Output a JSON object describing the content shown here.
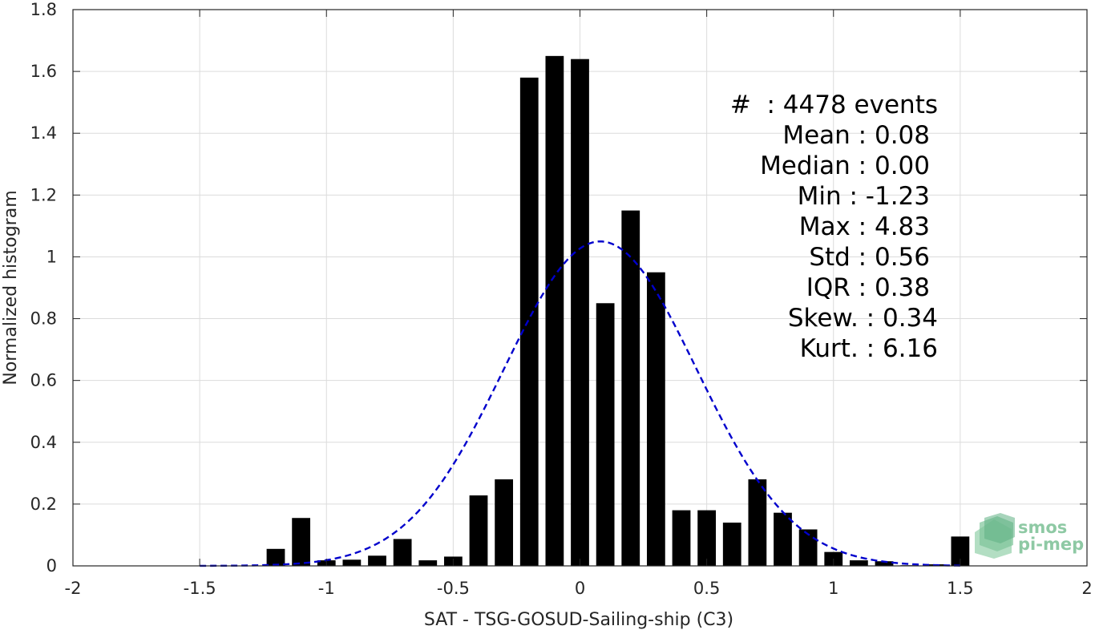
{
  "chart_data": {
    "type": "bar",
    "title": "",
    "xlabel": "SAT - TSG-GOSUD-Sailing-ship (C3)",
    "ylabel": "Normalized histogram",
    "xlim": [
      -2,
      2
    ],
    "ylim": [
      0,
      1.8
    ],
    "grid": true,
    "x_ticks": [
      -2,
      -1.5,
      -1,
      -0.5,
      0,
      0.5,
      1,
      1.5,
      2
    ],
    "x_tick_labels": [
      "-2",
      "-1.5",
      "-1",
      "-0.5",
      "0",
      "0.5",
      "1",
      "1.5",
      "2"
    ],
    "y_ticks": [
      0,
      0.2,
      0.4,
      0.6,
      0.8,
      1,
      1.2,
      1.4,
      1.6,
      1.8
    ],
    "y_tick_labels": [
      "0",
      "0.2",
      "0.4",
      "0.6",
      "0.8",
      "1",
      "1.2",
      "1.4",
      "1.6",
      "1.8"
    ],
    "bin_width": 0.1,
    "bars": {
      "x": [
        -1.2,
        -1.1,
        -1.0,
        -0.9,
        -0.8,
        -0.7,
        -0.6,
        -0.5,
        -0.4,
        -0.3,
        -0.2,
        -0.1,
        0.0,
        0.1,
        0.2,
        0.3,
        0.4,
        0.5,
        0.6,
        0.7,
        0.8,
        0.9,
        1.0,
        1.1,
        1.2,
        1.3,
        1.4,
        1.5
      ],
      "values": [
        0.055,
        0.155,
        0.018,
        0.02,
        0.033,
        0.087,
        0.018,
        0.03,
        0.228,
        0.28,
        1.58,
        1.65,
        1.64,
        0.85,
        1.15,
        0.95,
        0.18,
        0.18,
        0.14,
        0.28,
        0.172,
        0.118,
        0.045,
        0.018,
        0.015,
        0.002,
        0.005,
        0.095
      ],
      "color": "#000000"
    },
    "fit_curve": {
      "style": "dashed",
      "color": "#0000cc",
      "mean": 0.08,
      "std": 0.38,
      "x_range": [
        -1.5,
        1.5
      ],
      "peak": 1.05
    },
    "stats": [
      "#  : 4478 events",
      "Mean : 0.08",
      "Median : 0.00",
      "Min : -1.23",
      "Max : 4.83",
      "Std : 0.56",
      "IQR : 0.38",
      "Skew. : 0.34",
      "Kurt. : 6.16"
    ]
  },
  "logo": {
    "line1": "smos",
    "line2": "pi-mep",
    "color": "#8ec9a4"
  }
}
